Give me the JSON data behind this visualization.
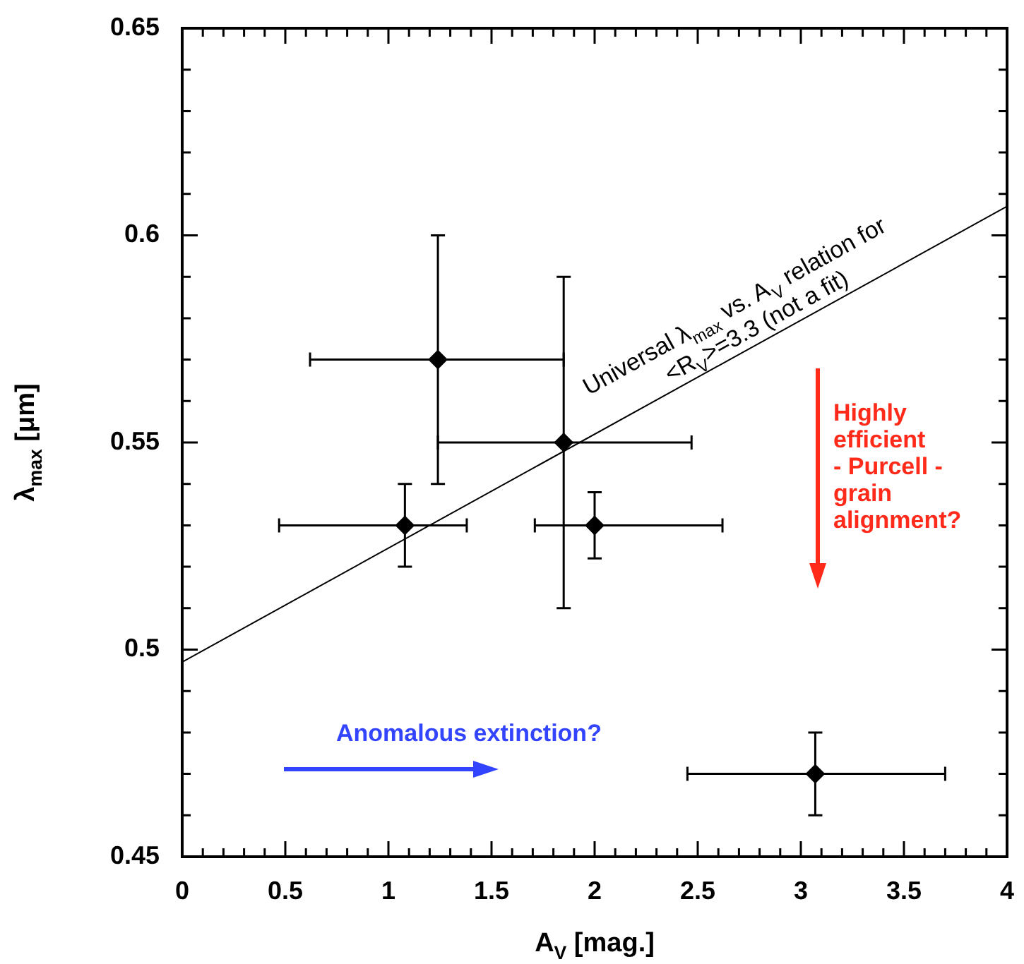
{
  "chart_data": {
    "type": "scatter",
    "xlabel": "A$_{V}$ [mag.]",
    "ylabel": "λ$_{max}$ [μm]",
    "xlim": [
      0,
      4
    ],
    "ylim": [
      0.45,
      0.65
    ],
    "xticks": [
      0,
      {
        "value": 0.1,
        "label": null
      },
      {
        "value": 0.2,
        "label": null
      },
      {
        "value": 0.3,
        "label": null
      },
      {
        "value": 0.4,
        "label": null
      },
      0.5,
      {
        "value": 0.6,
        "label": null
      },
      {
        "value": 0.7,
        "label": null
      },
      {
        "value": 0.8,
        "label": null
      },
      {
        "value": 0.9,
        "label": null
      },
      1,
      {
        "value": 1.1,
        "label": null
      },
      {
        "value": 1.2,
        "label": null
      },
      {
        "value": 1.3,
        "label": null
      },
      {
        "value": 1.4,
        "label": null
      },
      1.5,
      {
        "value": 1.6,
        "label": null
      },
      {
        "value": 1.7,
        "label": null
      },
      {
        "value": 1.8,
        "label": null
      },
      {
        "value": 1.9,
        "label": null
      },
      2,
      {
        "value": 2.1,
        "label": null
      },
      {
        "value": 2.2,
        "label": null
      },
      {
        "value": 2.3,
        "label": null
      },
      {
        "value": 2.4,
        "label": null
      },
      2.5,
      {
        "value": 2.6,
        "label": null
      },
      {
        "value": 2.7,
        "label": null
      },
      {
        "value": 2.8,
        "label": null
      },
      {
        "value": 2.9,
        "label": null
      },
      3,
      {
        "value": 3.1,
        "label": null
      },
      {
        "value": 3.2,
        "label": null
      },
      {
        "value": 3.3,
        "label": null
      },
      {
        "value": 3.4,
        "label": null
      },
      3.5,
      {
        "value": 3.6,
        "label": null
      },
      {
        "value": 3.7,
        "label": null
      },
      {
        "value": 3.8,
        "label": null
      },
      {
        "value": 3.9,
        "label": null
      },
      4
    ],
    "yticks": [
      0.45,
      {
        "value": 0.46,
        "label": null
      },
      {
        "value": 0.47,
        "label": null
      },
      {
        "value": 0.48,
        "label": null
      },
      {
        "value": 0.49,
        "label": null
      },
      0.5,
      {
        "value": 0.51,
        "label": null
      },
      {
        "value": 0.52,
        "label": null
      },
      {
        "value": 0.53,
        "label": null
      },
      {
        "value": 0.54,
        "label": null
      },
      0.55,
      {
        "value": 0.56,
        "label": null
      },
      {
        "value": 0.57,
        "label": null
      },
      {
        "value": 0.58,
        "label": null
      },
      {
        "value": 0.59,
        "label": null
      },
      0.6,
      {
        "value": 0.61,
        "label": null
      },
      {
        "value": 0.62,
        "label": null
      },
      {
        "value": 0.63,
        "label": null
      },
      {
        "value": 0.64,
        "label": null
      },
      0.65
    ],
    "series": [
      {
        "marker": "diamond",
        "color": "#000000",
        "x": [
          1.08,
          1.24,
          1.85,
          2.0,
          3.07
        ],
        "values": [
          0.53,
          0.57,
          0.55,
          0.53,
          0.47
        ],
        "errors": [
          [
            0.52,
            0.54
          ],
          [
            0.54,
            0.6
          ],
          [
            0.51,
            0.59
          ],
          [
            0.522,
            0.538
          ],
          [
            0.46,
            0.48
          ]
        ],
        "xerrors": [
          [
            0.47,
            1.38
          ],
          [
            0.62,
            1.85
          ],
          [
            1.24,
            2.47
          ],
          [
            1.71,
            2.62
          ],
          [
            2.45,
            3.7
          ]
        ]
      },
      {
        "type": "line",
        "name": "Universal λ$_{max}$ vs. A$_{V}$ relation for <R$_{V}$>=3.3 (not a fit)",
        "color": "#000000",
        "x": [
          0,
          4
        ],
        "values": [
          0.497,
          0.607
        ]
      }
    ],
    "annotations": [
      "Highly\nefficient\n- Purcell -\ngrain\nalignment?",
      "Anomalous extinction?"
    ]
  }
}
